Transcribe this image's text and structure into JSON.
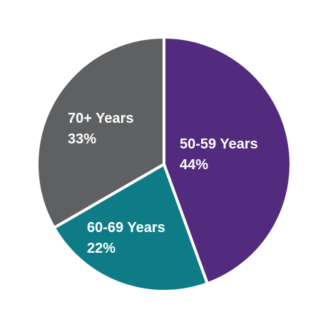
{
  "chart_data": {
    "type": "pie",
    "categories": [
      "50-59 Years",
      "60-69 Years",
      "70+ Years"
    ],
    "values": [
      44,
      22,
      33
    ],
    "value_labels": [
      "44%",
      "22%",
      "33%"
    ],
    "colors": [
      "#522a7e",
      "#0e7c86",
      "#5f6062"
    ]
  }
}
